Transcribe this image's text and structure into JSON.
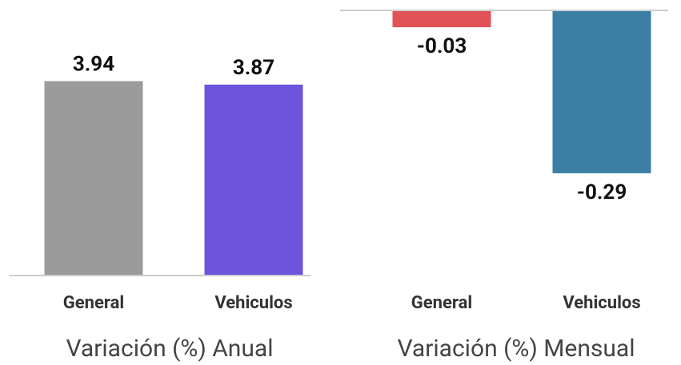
{
  "chart_data": [
    {
      "type": "bar",
      "title": "Variación (%) Anual",
      "categories": [
        "General",
        "Vehiculos"
      ],
      "values": [
        3.94,
        3.87
      ],
      "colors": [
        "#9b9b9b",
        "#6c55dc"
      ],
      "ylim": [
        0,
        4.5
      ]
    },
    {
      "type": "bar",
      "title": "Variación (%) Mensual",
      "categories": [
        "General",
        "Vehiculos"
      ],
      "values": [
        -0.03,
        -0.29
      ],
      "colors": [
        "#e05257",
        "#3a7fa3"
      ],
      "ylim": [
        -0.32,
        0
      ]
    }
  ]
}
